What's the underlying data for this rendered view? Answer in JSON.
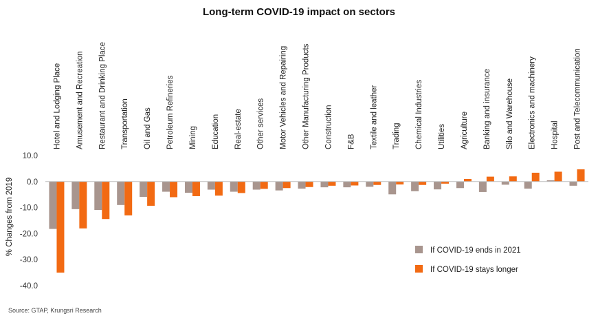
{
  "chart_data": {
    "type": "bar",
    "title": "Long-term COVID-19 impact on sectors",
    "ylabel": "% Changes from 2019",
    "ylim": [
      -40,
      10
    ],
    "yticks": [
      10,
      0,
      -10,
      -20,
      -30,
      -40
    ],
    "ytick_labels": [
      "10.0",
      "0.0",
      "-10.0",
      "-20.0",
      "-30.0",
      "-40.0"
    ],
    "grid": false,
    "legend_position": "bottom-right",
    "categories": [
      "Hotel and Lodging Place",
      "Amusement and Recreation",
      "Restaurant and Drinking Place",
      "Transportation",
      "Oil and Gas",
      "Petroleum Refineries",
      "Mining",
      "Education",
      "Real-estate",
      "Other services",
      "Motor Vehicles and Repairing",
      "Other Manufacturing Products",
      "Construction",
      "F&B",
      "Textile and leather",
      "Trading",
      "Chemical Industries",
      "Utilities",
      "Agriculture",
      "Banking and insurance",
      "Silo and Warehouse",
      "Electronics and machinery",
      "Hospital",
      "Post and Telecommunication"
    ],
    "series": [
      {
        "name": "If COVID-19 ends in 2021",
        "color": "#a8958e",
        "values": [
          -18.2,
          -10.6,
          -10.9,
          -9.0,
          -5.9,
          -3.9,
          -4.3,
          -3.1,
          -3.9,
          -3.1,
          -3.4,
          -2.7,
          -2.2,
          -2.2,
          -2.0,
          -4.9,
          -3.7,
          -3.0,
          -2.5,
          -4.0,
          -1.2,
          -2.7,
          0.5,
          -1.6
        ]
      },
      {
        "name": "If COVID-19 stays longer",
        "color": "#f26a13",
        "values": [
          -35.0,
          -18.0,
          -14.4,
          -13.0,
          -9.3,
          -6.0,
          -5.6,
          -5.4,
          -4.4,
          -2.8,
          -2.5,
          -2.1,
          -1.6,
          -1.5,
          -1.3,
          -1.1,
          -1.3,
          -0.8,
          1.0,
          1.9,
          2.0,
          3.4,
          3.8,
          4.7
        ]
      }
    ],
    "source": "Source: GTAP, Krungsri Research"
  }
}
